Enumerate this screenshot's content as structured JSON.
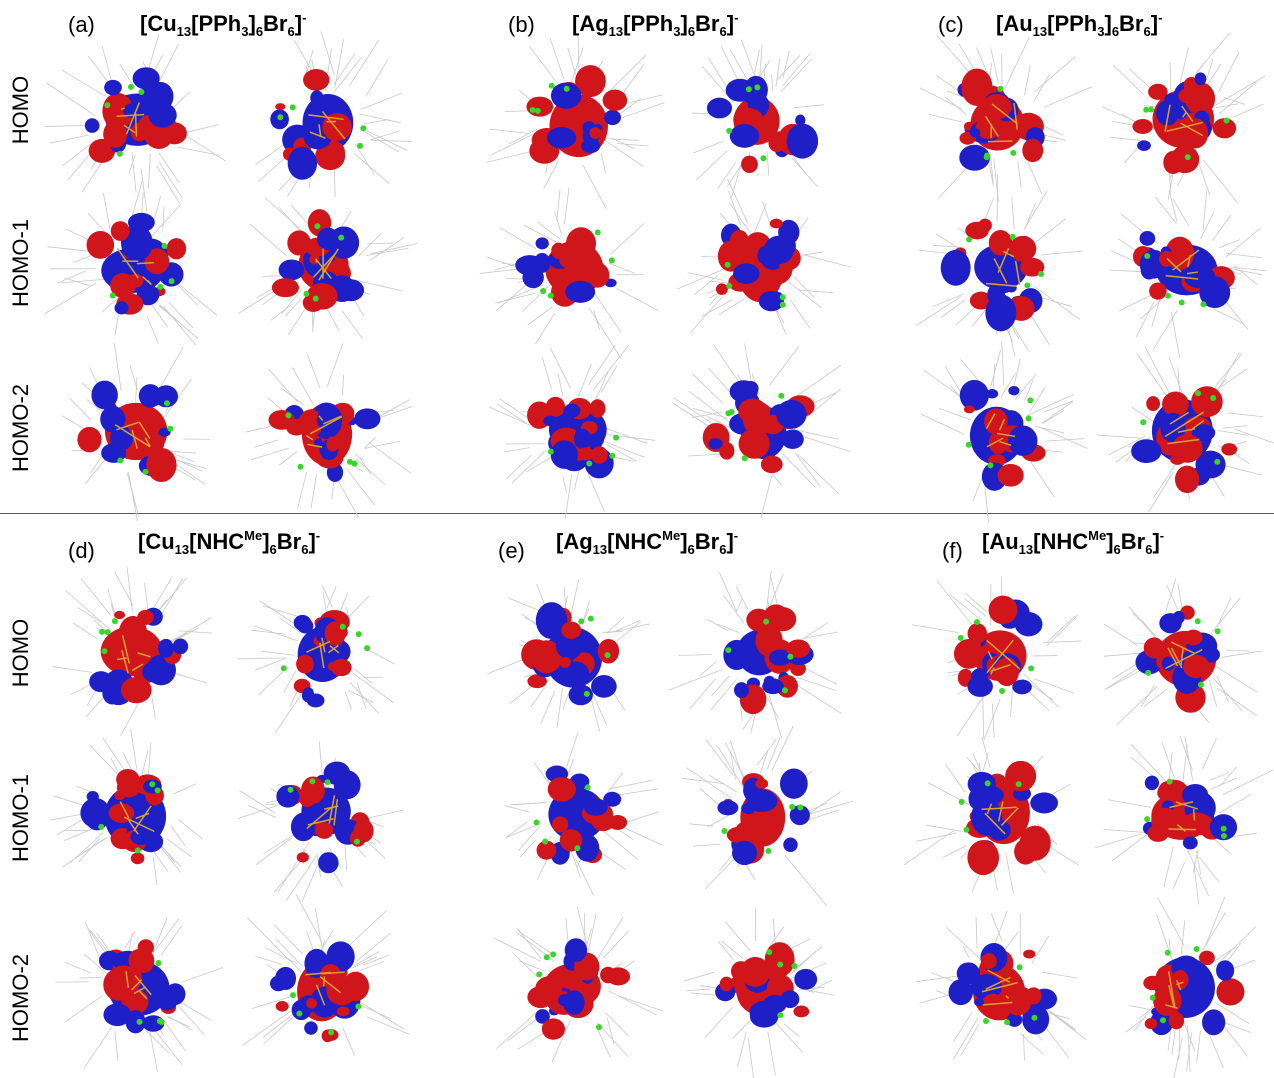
{
  "divider_after_row": 3,
  "colors": {
    "positive_lobe": "#d0151b",
    "negative_lobe": "#1f1fc8",
    "bromine": "#37d629",
    "metal_bond": "#d9a22f",
    "ligand_wire": "#c8c8c8"
  },
  "row_labels": [
    "HOMO",
    "HOMO-1",
    "HOMO-2",
    "HOMO",
    "HOMO-1",
    "HOMO-2"
  ],
  "panels": [
    {
      "letter": "(a)",
      "metal": "Cu",
      "metal_sub": "13",
      "ligand": "PPh",
      "ligand_sub": "3",
      "ligand_sup": "",
      "halide": "Br",
      "halide_sub": "6",
      "count_sub": "6",
      "charge": "-"
    },
    {
      "letter": "(b)",
      "metal": "Ag",
      "metal_sub": "13",
      "ligand": "PPh",
      "ligand_sub": "3",
      "ligand_sup": "",
      "halide": "Br",
      "halide_sub": "6",
      "count_sub": "6",
      "charge": "-"
    },
    {
      "letter": "(c)",
      "metal": "Au",
      "metal_sub": "13",
      "ligand": "PPh",
      "ligand_sub": "3",
      "ligand_sup": "",
      "halide": "Br",
      "halide_sub": "6",
      "count_sub": "6",
      "charge": "-"
    },
    {
      "letter": "(d)",
      "metal": "Cu",
      "metal_sub": "13",
      "ligand": "NHC",
      "ligand_sub": "",
      "ligand_sup": "Me",
      "halide": "Br",
      "halide_sub": "6",
      "count_sub": "6",
      "charge": "-"
    },
    {
      "letter": "(e)",
      "metal": "Ag",
      "metal_sub": "13",
      "ligand": "NHC",
      "ligand_sub": "",
      "ligand_sup": "Me",
      "halide": "Br",
      "halide_sub": "6",
      "count_sub": "6",
      "charge": "-"
    },
    {
      "letter": "(f)",
      "metal": "Au",
      "metal_sub": "13",
      "ligand": "NHC",
      "ligand_sub": "",
      "ligand_sup": "Me",
      "halide": "Br",
      "halide_sub": "6",
      "count_sub": "6",
      "charge": "-"
    }
  ]
}
